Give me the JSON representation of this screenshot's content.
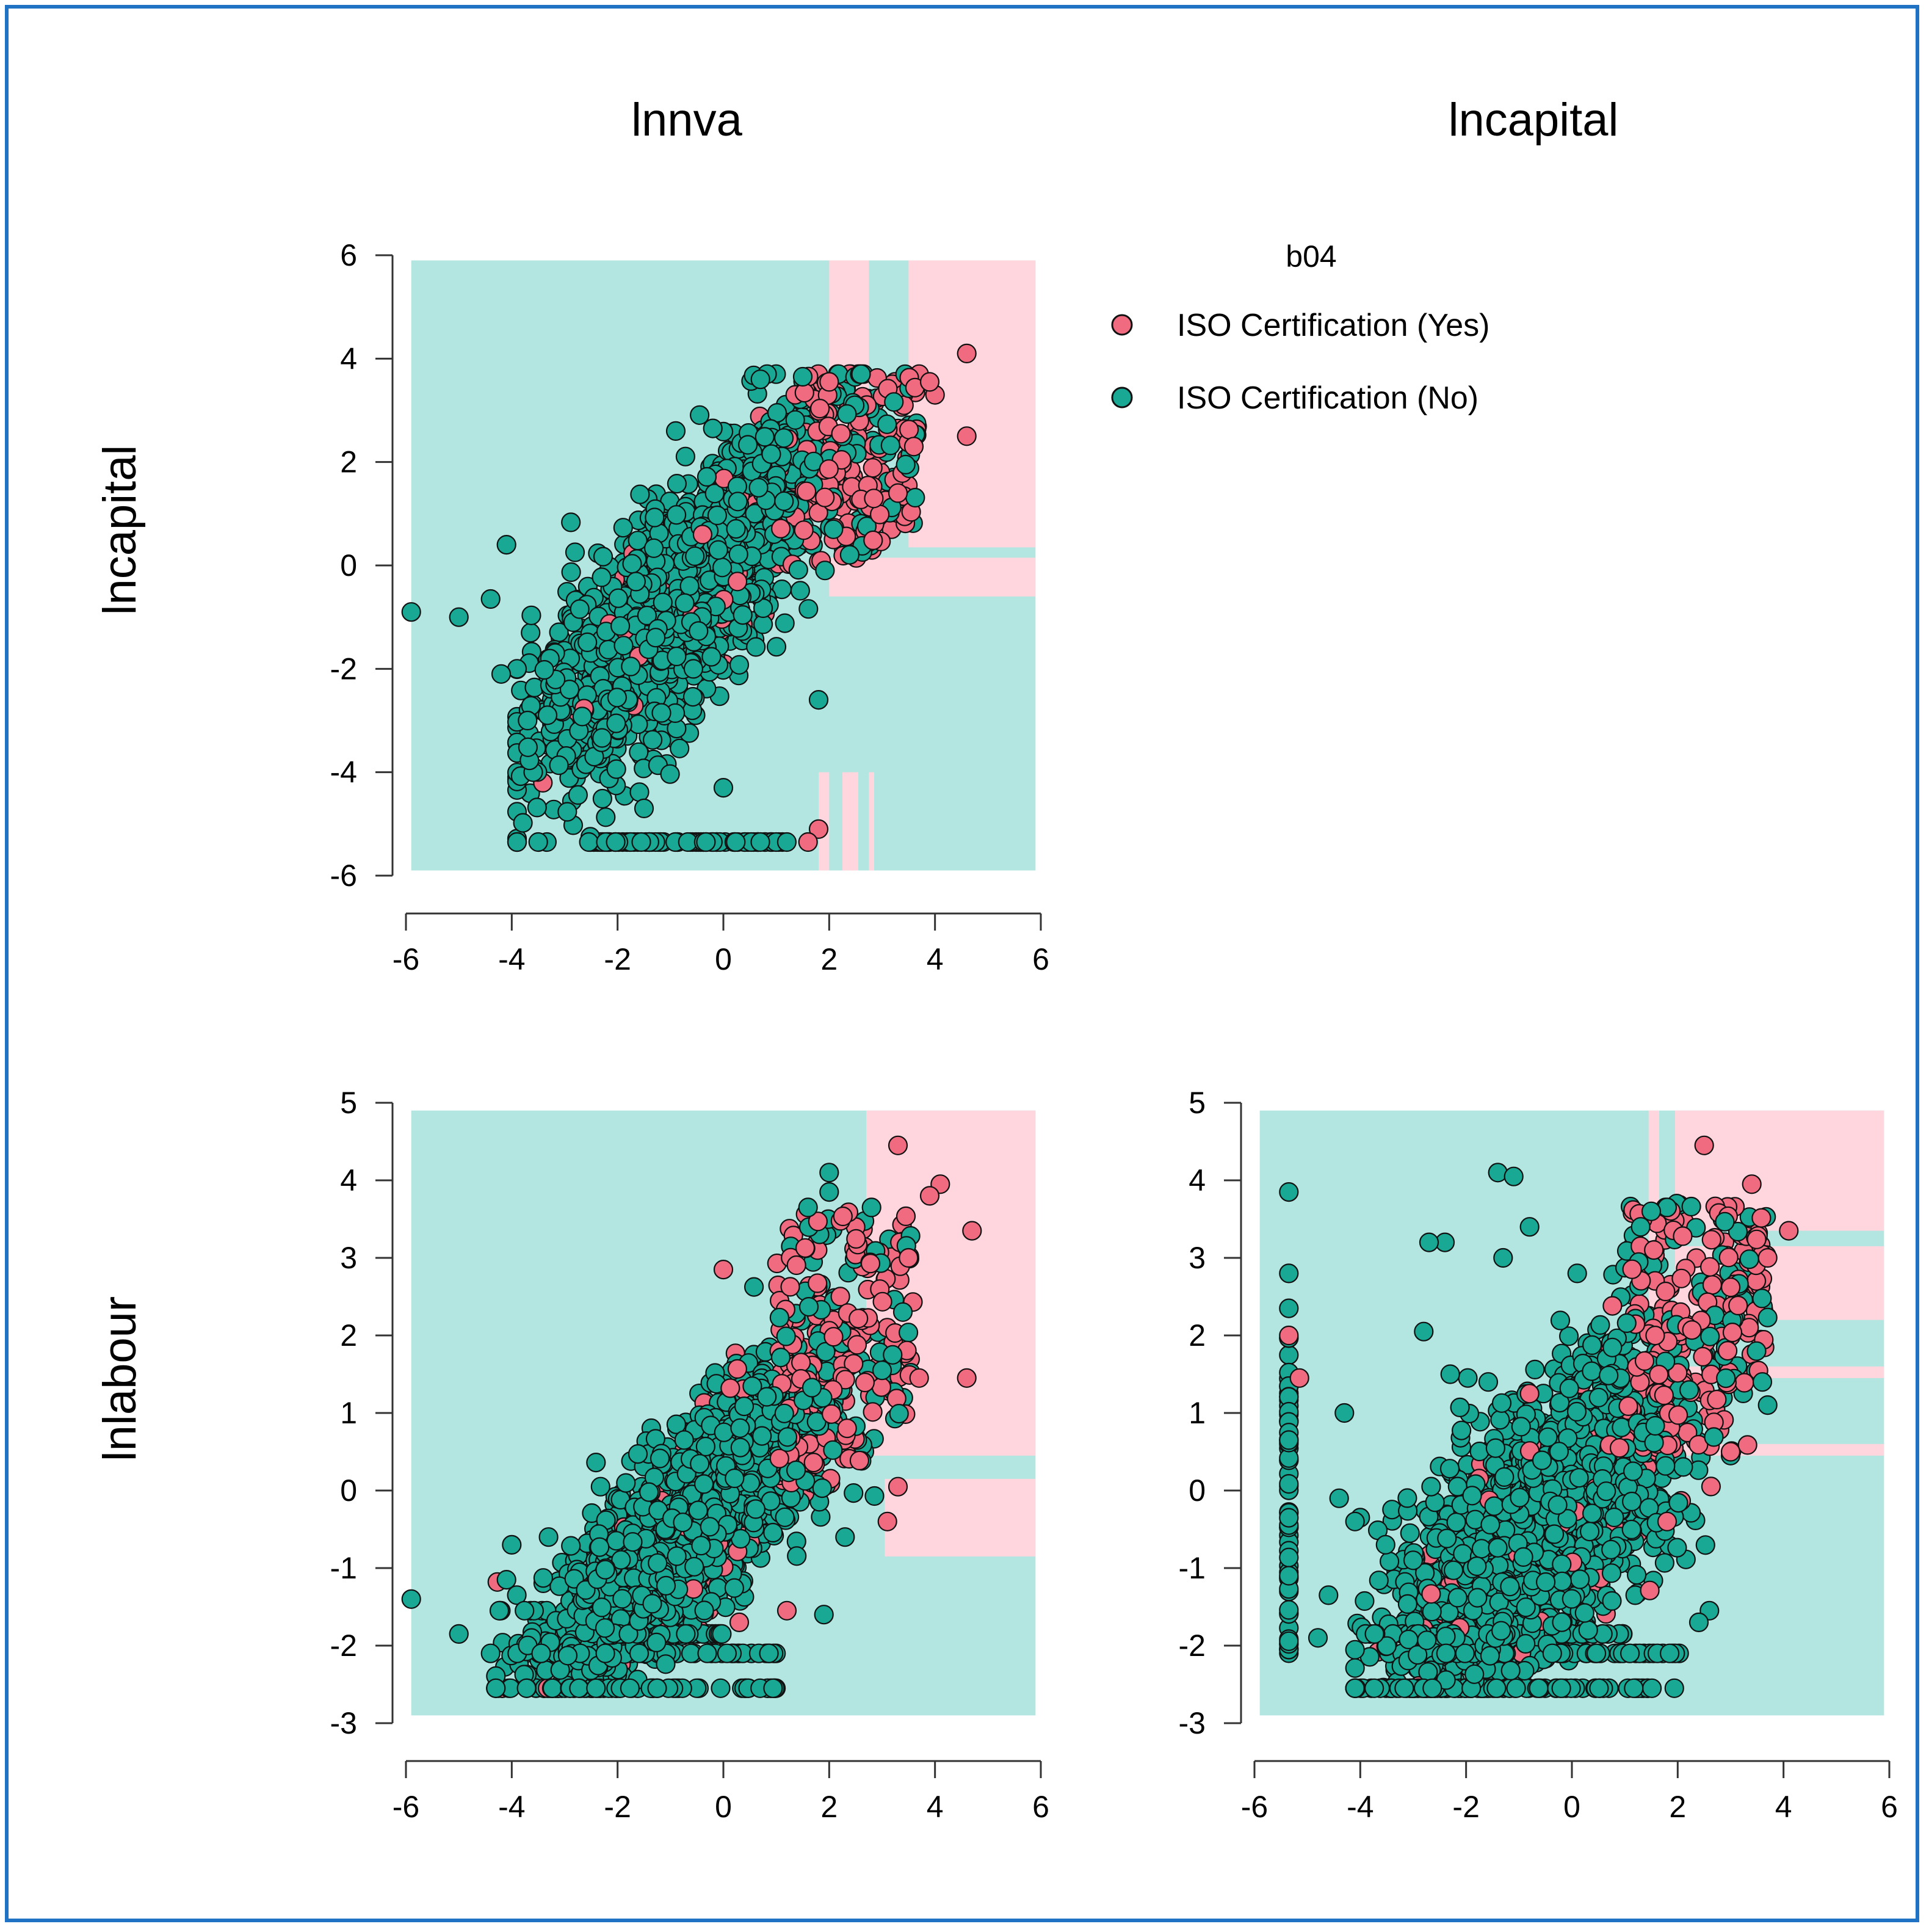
{
  "colors": {
    "frame": "#1f72c4",
    "region_no": "#b4e6e1",
    "region_yes": "#ffd6de",
    "point_no": "#18a893",
    "point_yes": "#f06b80",
    "point_edge": "#111111"
  },
  "chart_data": {
    "type": "scatter",
    "column_titles": [
      "lnnva",
      "lncapital"
    ],
    "row_titles": [
      "lncapital",
      "lnlabour"
    ],
    "legend": {
      "title": "b04",
      "entries": [
        {
          "label": "ISO Certification (Yes)",
          "color_key": "point_yes"
        },
        {
          "label": "ISO Certification (No)",
          "color_key": "point_no"
        }
      ]
    },
    "panels": [
      {
        "name": "lnnva-vs-lncapital",
        "xlabel": "lnnva",
        "ylabel": "lncapital",
        "xlim": [
          -6,
          6
        ],
        "ylim": [
          -6,
          6
        ],
        "xticks": [
          "-6",
          "-4",
          "-2",
          "0",
          "2",
          "4",
          "6"
        ],
        "yticks": [
          "-6",
          "-4",
          "-2",
          "0",
          "2",
          "4",
          "6"
        ],
        "xticks_values": [
          -6,
          -4,
          -2,
          0,
          2,
          4,
          6
        ],
        "yticks_values": [
          -6,
          -4,
          -2,
          0,
          2,
          4,
          6
        ],
        "region_extent": {
          "x": [
            -5.9,
            5.9
          ],
          "y": [
            -5.9,
            5.9
          ]
        },
        "yes_regions": [
          [
            2.0,
            2.75,
            0.35,
            5.9
          ],
          [
            3.5,
            5.9,
            0.35,
            5.9
          ],
          [
            2.0,
            5.9,
            -0.6,
            0.15
          ],
          [
            1.8,
            2.0,
            -5.9,
            -4.0
          ],
          [
            2.25,
            2.55,
            -5.9,
            -4.0
          ],
          [
            2.75,
            2.85,
            -5.9,
            -4.0
          ]
        ],
        "cluster": {
          "n": 1800,
          "center": [
            -0.8,
            -0.6
          ],
          "slope": 1.0,
          "spread": 1.0,
          "xmin": -3.9,
          "xmax": 3.7,
          "ymin": -5.35,
          "ymax": 3.7
        },
        "floor": {
          "y": -5.35,
          "x": [
            -2.6,
            1.2
          ],
          "n": 90
        },
        "outliers_no": [
          [
            -5.9,
            -0.9
          ],
          [
            -5.0,
            -1.0
          ],
          [
            -4.4,
            -0.65
          ],
          [
            -3.9,
            -2.0
          ],
          [
            -4.2,
            -2.1
          ],
          [
            -4.1,
            0.4
          ],
          [
            -3.5,
            -5.35
          ],
          [
            -3.7,
            -3.0
          ],
          [
            0.7,
            3.6
          ],
          [
            1.5,
            3.65
          ],
          [
            1.8,
            -2.6
          ],
          [
            0.0,
            -4.3
          ],
          [
            -1.5,
            -4.7
          ],
          [
            -0.9,
            2.6
          ],
          [
            -0.2,
            2.65
          ]
        ],
        "outliers_yes": [
          [
            4.6,
            4.1
          ],
          [
            4.6,
            2.5
          ],
          [
            3.3,
            1.4
          ],
          [
            4.0,
            3.3
          ],
          [
            3.9,
            3.55
          ],
          [
            1.8,
            -5.1
          ],
          [
            2.0,
            3.55
          ],
          [
            1.6,
            -5.35
          ],
          [
            3.6,
            2.3
          ]
        ],
        "yes_zone": {
          "x": [
            1.5,
            3.7
          ],
          "y": [
            0.0,
            3.7
          ],
          "n": 180
        }
      },
      {
        "name": "lnnva-vs-lnlabour",
        "xlabel": "lnnva",
        "ylabel": "lnlabour",
        "xlim": [
          -6,
          6
        ],
        "ylim": [
          -3,
          5
        ],
        "xticks": [
          "-6",
          "-4",
          "-2",
          "0",
          "2",
          "4",
          "6"
        ],
        "yticks": [
          "-3",
          "-2",
          "-1",
          "0",
          "1",
          "2",
          "3",
          "4",
          "5"
        ],
        "xticks_values": [
          -6,
          -4,
          -2,
          0,
          2,
          4,
          6
        ],
        "yticks_values": [
          -3,
          -2,
          -1,
          0,
          1,
          2,
          3,
          4,
          5
        ],
        "region_extent": {
          "x": [
            -5.9,
            5.9
          ],
          "y": [
            -2.9,
            4.9
          ]
        },
        "yes_regions": [
          [
            2.7,
            5.9,
            0.45,
            4.9
          ],
          [
            3.05,
            5.9,
            -0.85,
            0.15
          ]
        ],
        "cluster": {
          "n": 1800,
          "center": [
            -0.6,
            -0.4
          ],
          "slope": 0.62,
          "spread": 0.6,
          "xmin": -4.3,
          "xmax": 3.7,
          "ymin": -2.55,
          "ymax": 4.1
        },
        "floor_rows": [
          {
            "y": -2.1,
            "x": [
              -3.9,
              1.0
            ],
            "n": 60
          },
          {
            "y": -2.55,
            "x": [
              -3.6,
              1.1
            ],
            "n": 60
          },
          {
            "y": -1.85,
            "x": [
              -2.2,
              0.0
            ],
            "n": 40
          },
          {
            "y": -1.55,
            "x": [
              -4.5,
              -3.2
            ],
            "n": 8
          }
        ],
        "outliers_no": [
          [
            -5.9,
            -1.4
          ],
          [
            -5.0,
            -1.85
          ],
          [
            -4.4,
            -2.1
          ],
          [
            -4.3,
            -2.55
          ],
          [
            -4.1,
            -1.15
          ],
          [
            -4.0,
            -0.7
          ],
          [
            2.0,
            4.1
          ],
          [
            2.0,
            3.85
          ],
          [
            1.6,
            3.65
          ],
          [
            2.8,
            3.65
          ],
          [
            3.2,
            1.75
          ],
          [
            2.3,
            -0.6
          ],
          [
            1.9,
            -1.6
          ],
          [
            3.0,
            1.55
          ]
        ],
        "outliers_yes": [
          [
            3.3,
            4.45
          ],
          [
            4.1,
            3.95
          ],
          [
            4.7,
            3.35
          ],
          [
            4.6,
            1.45
          ],
          [
            3.7,
            1.45
          ],
          [
            3.3,
            0.05
          ],
          [
            3.1,
            -0.4
          ],
          [
            0.0,
            2.85
          ],
          [
            3.5,
            3.0
          ],
          [
            3.9,
            3.8
          ],
          [
            0.3,
            -1.7
          ],
          [
            1.2,
            -1.55
          ]
        ],
        "yes_zone": {
          "x": [
            1.0,
            3.6
          ],
          "y": [
            0.0,
            3.6
          ],
          "n": 180
        }
      },
      {
        "name": "lncapital-vs-lnlabour",
        "xlabel": "lncapital",
        "ylabel": "lnlabour",
        "xlim": [
          -6,
          6
        ],
        "ylim": [
          -3,
          5
        ],
        "xticks": [
          "-6",
          "-4",
          "-2",
          "0",
          "2",
          "4",
          "6"
        ],
        "yticks": [
          "-3",
          "-2",
          "-1",
          "0",
          "1",
          "2",
          "3",
          "4",
          "5"
        ],
        "xticks_values": [
          -6,
          -4,
          -2,
          0,
          2,
          4,
          6
        ],
        "yticks_values": [
          -3,
          -2,
          -1,
          0,
          1,
          2,
          3,
          4,
          5
        ],
        "region_extent": {
          "x": [
            -5.9,
            5.9
          ],
          "y": [
            -2.9,
            4.9
          ]
        },
        "yes_regions": [
          [
            1.45,
            1.65,
            2.2,
            4.9
          ],
          [
            1.95,
            5.9,
            3.35,
            4.9
          ],
          [
            1.95,
            5.9,
            2.2,
            3.15
          ],
          [
            1.95,
            5.9,
            1.45,
            1.6
          ],
          [
            1.95,
            5.9,
            0.45,
            0.6
          ]
        ],
        "cluster": {
          "n": 1900,
          "center": [
            -0.6,
            -0.5
          ],
          "slope": 0.55,
          "spread": 0.85,
          "xmin": -4.1,
          "xmax": 3.7,
          "ymin": -2.55,
          "ymax": 3.7
        },
        "floor_rows": [
          {
            "y": -2.1,
            "x": [
              -3.5,
              2.1
            ],
            "n": 70
          },
          {
            "y": -2.55,
            "x": [
              -3.2,
              2.0
            ],
            "n": 60
          },
          {
            "y": -1.85,
            "x": [
              -3.9,
              1.0
            ],
            "n": 60
          }
        ],
        "vertical": {
          "x": -5.35,
          "y": [
            -2.1,
            2.0
          ],
          "n": 60,
          "extra": [
            [
              -5.35,
              3.85
            ],
            [
              -5.35,
              2.8
            ],
            [
              -5.35,
              2.35
            ]
          ]
        },
        "outliers_no": [
          [
            -4.4,
            -0.1
          ],
          [
            -4.0,
            -0.35
          ],
          [
            -4.6,
            -1.35
          ],
          [
            -4.8,
            -1.9
          ],
          [
            -4.3,
            1.0
          ],
          [
            -4.1,
            -0.4
          ],
          [
            -3.0,
            -0.9
          ],
          [
            -1.4,
            4.1
          ],
          [
            -1.1,
            4.05
          ],
          [
            -1.3,
            3.0
          ],
          [
            -0.8,
            3.4
          ],
          [
            -2.4,
            3.2
          ],
          [
            -2.7,
            3.2
          ],
          [
            -2.3,
            1.5
          ],
          [
            -2.8,
            2.05
          ],
          [
            1.3,
            3.4
          ],
          [
            1.8,
            3.65
          ],
          [
            1.5,
            3.6
          ],
          [
            2.6,
            -1.55
          ],
          [
            3.6,
            1.4
          ],
          [
            3.0,
            0.45
          ],
          [
            2.4,
            -1.7
          ],
          [
            0.1,
            2.8
          ]
        ],
        "outliers_yes": [
          [
            2.5,
            4.45
          ],
          [
            3.4,
            3.95
          ],
          [
            4.1,
            3.35
          ],
          [
            3.7,
            3.0
          ],
          [
            3.0,
            0.5
          ],
          [
            -5.35,
            2.0
          ],
          [
            -5.15,
            1.45
          ],
          [
            -0.8,
            1.25
          ],
          [
            0.9,
            0.55
          ],
          [
            1.8,
            -0.4
          ]
        ],
        "yes_zone": {
          "x": [
            1.0,
            3.7
          ],
          "y": [
            0.5,
            3.7
          ],
          "n": 200
        }
      }
    ]
  }
}
